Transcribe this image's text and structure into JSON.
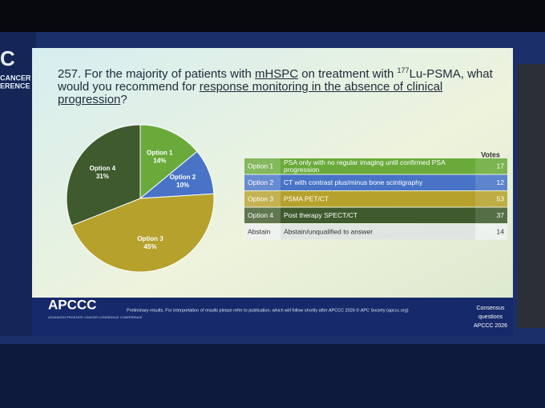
{
  "slide": {
    "title": [
      "257. For the majority of patients with ",
      "mHSPC",
      " on treatment with ",
      "177",
      "Lu-PSMA, what would you recommend for ",
      "response monitoring in the absence of clinical progression",
      "?"
    ],
    "side_banner": [
      "C",
      "CANCER",
      "ERENCE"
    ],
    "logo": "APCCC",
    "logo_sub": "ADVANCED PROSTATE CANCER CONSENSUS CONFERENCE",
    "disclaimer": "Preliminary results. For interpretation of results please refer to publication, which will follow shortly after APCCC 2026 © APC Society (apccc.org)",
    "footer_right": [
      "Consensus",
      "questions",
      "APCCC 2026"
    ]
  },
  "chart_data": {
    "type": "pie",
    "categories": [
      "Option 1",
      "Option 2",
      "Option 3",
      "Option 4"
    ],
    "values": [
      14,
      10,
      45,
      31
    ],
    "value_labels": [
      "14%",
      "10%",
      "45%",
      "31%"
    ],
    "colors": [
      "#6aaa3a",
      "#4873c6",
      "#b6a12c",
      "#3f5a2d"
    ]
  },
  "table": {
    "header": "Votes",
    "rows": [
      {
        "option": "Option 1",
        "text": "PSA only with no regular imaging until confirmed PSA progression",
        "votes": 17,
        "color": "#6aaa3a"
      },
      {
        "option": "Option 2",
        "text": "CT with contrast plus/minus bone scintigraphy",
        "votes": 12,
        "color": "#4873c6"
      },
      {
        "option": "Option 3",
        "text": "PSMA PET/CT",
        "votes": 53,
        "color": "#b6a12c"
      },
      {
        "option": "Option 4",
        "text": "Post therapy SPECT/CT",
        "votes": 37,
        "color": "#3f5a2d"
      },
      {
        "option": "Abstain",
        "text": "Abstain/unqualified to answer",
        "votes": 14,
        "color": "#dfe6e2"
      }
    ]
  }
}
